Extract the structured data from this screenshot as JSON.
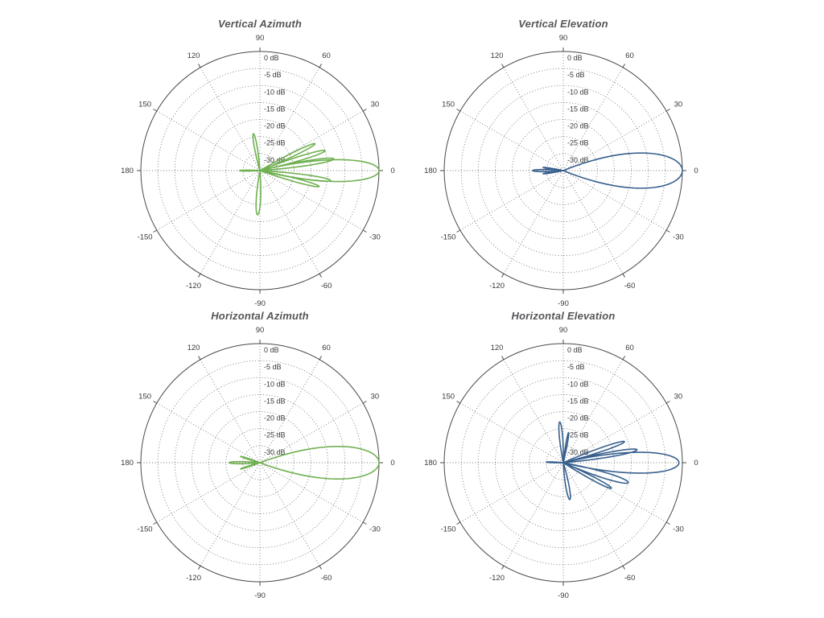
{
  "figure": {
    "background": "#ffffff",
    "grid_color": "#777777",
    "outer_ring_color": "#4a4a4a",
    "label_color": "#39393b",
    "title_color": "#56565a"
  },
  "axes": {
    "r_min_db": -35,
    "r_max_db": 0,
    "lobe_falloff_db_at_width": 12,
    "radial_ticks": [
      {
        "db": 0,
        "label": "0 dB"
      },
      {
        "db": -5,
        "label": "-5 dB"
      },
      {
        "db": -10,
        "label": "-10 dB"
      },
      {
        "db": -15,
        "label": "-15 dB"
      },
      {
        "db": -20,
        "label": "-20 dB"
      },
      {
        "db": -25,
        "label": "-25 dB"
      },
      {
        "db": -30,
        "label": "-30 dB"
      }
    ],
    "angle_ticks": [
      {
        "deg": 0,
        "label": "0"
      },
      {
        "deg": 30,
        "label": "30"
      },
      {
        "deg": 60,
        "label": "60"
      },
      {
        "deg": 90,
        "label": "90"
      },
      {
        "deg": 120,
        "label": "120"
      },
      {
        "deg": 150,
        "label": "150"
      },
      {
        "deg": 180,
        "label": "180"
      },
      {
        "deg": -150,
        "label": "-150"
      },
      {
        "deg": -120,
        "label": "-120"
      },
      {
        "deg": -90,
        "label": "-90"
      },
      {
        "deg": -60,
        "label": "-60"
      },
      {
        "deg": -30,
        "label": "-30"
      }
    ]
  },
  "chart_data": [
    {
      "type": "polar-line",
      "title": "Vertical Azimuth",
      "color": "#6fb050",
      "r_unit": "dB",
      "angle_unit": "deg",
      "lobes": [
        {
          "angle_deg": 0,
          "peak_db": 0,
          "width_deg": 8
        },
        {
          "angle_deg": 9,
          "peak_db": -13,
          "width_deg": 3.5
        },
        {
          "angle_deg": 17,
          "peak_db": -15,
          "width_deg": 3.5
        },
        {
          "angle_deg": 26,
          "peak_db": -17,
          "width_deg": 3.5
        },
        {
          "angle_deg": -8,
          "peak_db": -14,
          "width_deg": 3.5
        },
        {
          "angle_deg": -15,
          "peak_db": -17,
          "width_deg": 3.5
        },
        {
          "angle_deg": 100,
          "peak_db": -24,
          "width_deg": 6
        },
        {
          "angle_deg": -93,
          "peak_db": -22,
          "width_deg": 7
        },
        {
          "angle_deg": 180,
          "peak_db": -29,
          "width_deg": 5
        }
      ]
    },
    {
      "type": "polar-line",
      "title": "Vertical Elevation",
      "color": "#38608e",
      "r_unit": "dB",
      "angle_unit": "deg",
      "lobes": [
        {
          "angle_deg": 0,
          "peak_db": 0,
          "width_deg": 13
        },
        {
          "angle_deg": 180,
          "peak_db": -26,
          "width_deg": 6
        },
        {
          "angle_deg": 171,
          "peak_db": -29,
          "width_deg": 4
        },
        {
          "angle_deg": -171,
          "peak_db": -29,
          "width_deg": 4
        }
      ]
    },
    {
      "type": "polar-line",
      "title": "Horizontal Azimuth",
      "color": "#6fb050",
      "r_unit": "dB",
      "angle_unit": "deg",
      "lobes": [
        {
          "angle_deg": 0,
          "peak_db": 0,
          "width_deg": 12
        },
        {
          "angle_deg": 180,
          "peak_db": -26,
          "width_deg": 6
        },
        {
          "angle_deg": 162,
          "peak_db": -29,
          "width_deg": 4
        },
        {
          "angle_deg": -162,
          "peak_db": -29,
          "width_deg": 4
        }
      ]
    },
    {
      "type": "polar-line",
      "title": "Horizontal Elevation",
      "color": "#38608e",
      "r_unit": "dB",
      "angle_unit": "deg",
      "lobes": [
        {
          "angle_deg": 0,
          "peak_db": -1,
          "width_deg": 8
        },
        {
          "angle_deg": 10,
          "peak_db": -13,
          "width_deg": 3.5
        },
        {
          "angle_deg": 19,
          "peak_db": -16,
          "width_deg": 3.5
        },
        {
          "angle_deg": -17,
          "peak_db": -15,
          "width_deg": 5
        },
        {
          "angle_deg": -28,
          "peak_db": -19,
          "width_deg": 4
        },
        {
          "angle_deg": 95,
          "peak_db": -23,
          "width_deg": 6
        },
        {
          "angle_deg": 80,
          "peak_db": -26,
          "width_deg": 4
        },
        {
          "angle_deg": -80,
          "peak_db": -24,
          "width_deg": 7
        },
        {
          "angle_deg": 178,
          "peak_db": -30,
          "width_deg": 5
        }
      ]
    }
  ]
}
